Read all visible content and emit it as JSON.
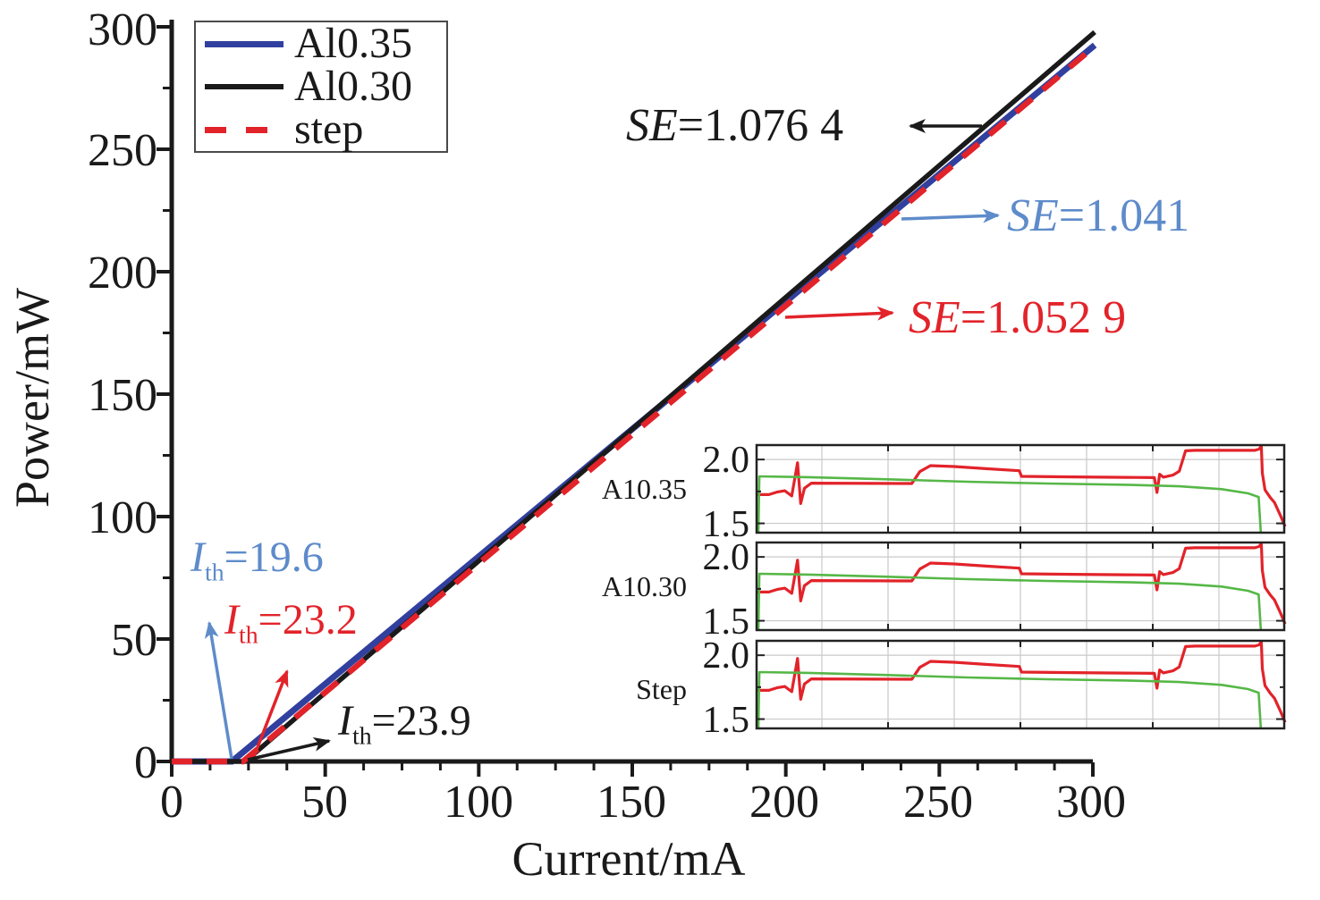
{
  "figure": {
    "xlabel": "Current/mA",
    "ylabel": "Power/mW"
  },
  "legend": {
    "items": [
      {
        "label": "Al0.35",
        "color": "#31409e",
        "style": "solid"
      },
      {
        "label": "Al0.30",
        "color": "#1a1a1a",
        "style": "solid"
      },
      {
        "label": "step",
        "color": "#e2232a",
        "style": "dashed"
      }
    ]
  },
  "annotations": {
    "se": [
      {
        "sym": "SE",
        "val": "=1.076 4",
        "color": "#1a1a1a",
        "target": "Al0.30"
      },
      {
        "sym": "SE",
        "val": "=1.041",
        "color": "#5e8bca",
        "target": "Al0.35"
      },
      {
        "sym": "SE",
        "val": "=1.052 9",
        "color": "#e2232a",
        "target": "step"
      }
    ],
    "ith": [
      {
        "sym": "I",
        "sub": "th",
        "val": "=19.6",
        "color": "#5e8bca",
        "target": "Al0.35"
      },
      {
        "sym": "I",
        "sub": "th",
        "val": "=23.2",
        "color": "#e2232a",
        "target": "step"
      },
      {
        "sym": "I",
        "sub": "th",
        "val": "=23.9",
        "color": "#1a1a1a",
        "target": "Al0.30"
      }
    ]
  },
  "chart_data": {
    "type": "line",
    "title": "",
    "xlabel": "Current/mA",
    "ylabel": "Power/mW",
    "xlim": [
      0,
      300
    ],
    "ylim": [
      0,
      300
    ],
    "grid": false,
    "legend_position": "upper-left",
    "x_ticks": [
      0,
      50,
      100,
      150,
      200,
      250,
      300
    ],
    "y_ticks": [
      0,
      50,
      100,
      150,
      200,
      250,
      300
    ],
    "x_minor_step": 12.5,
    "y_minor_step": 25,
    "series": [
      {
        "name": "Al0.35",
        "color": "#31409e",
        "style": "solid",
        "threshold_mA": 19.6,
        "slope_efficiency_W_per_A": 1.041,
        "power_at_300mA_mW": 291.9
      },
      {
        "name": "step",
        "color": "#e2232a",
        "style": "dashed",
        "threshold_mA": 23.2,
        "slope_efficiency_W_per_A": 1.0529,
        "power_at_300mA_mW": 291.4
      },
      {
        "name": "Al0.30",
        "color": "#1a1a1a",
        "style": "solid",
        "threshold_mA": 23.9,
        "slope_efficiency_W_per_A": 1.0764,
        "power_at_300mA_mW": 297.2
      }
    ],
    "insets": {
      "labels": [
        "A10.35",
        "A10.30",
        "Step"
      ],
      "y_tick_labels": [
        "2.0",
        "1.5"
      ],
      "y_ticks": [
        2.0,
        1.5
      ],
      "y_range": [
        1.42,
        2.12
      ],
      "grid": true,
      "series": [
        {
          "name": "red-curve",
          "color": "#e2232a",
          "points": [
            [
              0.0,
              1.725
            ],
            [
              0.025,
              1.725
            ],
            [
              0.04,
              1.745
            ],
            [
              0.055,
              1.755
            ],
            [
              0.068,
              1.715
            ],
            [
              0.079,
              1.975
            ],
            [
              0.085,
              1.655
            ],
            [
              0.092,
              1.775
            ],
            [
              0.105,
              1.815
            ],
            [
              0.295,
              1.812
            ],
            [
              0.31,
              1.905
            ],
            [
              0.33,
              1.952
            ],
            [
              0.375,
              1.945
            ],
            [
              0.435,
              1.928
            ],
            [
              0.498,
              1.912
            ],
            [
              0.502,
              1.868
            ],
            [
              0.6,
              1.864
            ],
            [
              0.7,
              1.86
            ],
            [
              0.753,
              1.858
            ],
            [
              0.758,
              1.742
            ],
            [
              0.763,
              1.885
            ],
            [
              0.77,
              1.862
            ],
            [
              0.788,
              1.878
            ],
            [
              0.8,
              1.908
            ],
            [
              0.812,
              2.068
            ],
            [
              0.83,
              2.072
            ],
            [
              0.943,
              2.072
            ],
            [
              0.951,
              2.082
            ],
            [
              0.955,
              2.135
            ],
            [
              0.957,
              1.895
            ],
            [
              0.962,
              1.762
            ],
            [
              0.972,
              1.702
            ],
            [
              0.98,
              1.662
            ],
            [
              0.99,
              1.572
            ],
            [
              1.0,
              1.475
            ]
          ]
        },
        {
          "name": "green-curve",
          "color": "#56b747",
          "points": [
            [
              0.005,
              1.43
            ],
            [
              0.007,
              1.868
            ],
            [
              0.1,
              1.862
            ],
            [
              0.25,
              1.845
            ],
            [
              0.4,
              1.826
            ],
            [
              0.55,
              1.812
            ],
            [
              0.7,
              1.802
            ],
            [
              0.8,
              1.79
            ],
            [
              0.88,
              1.768
            ],
            [
              0.93,
              1.735
            ],
            [
              0.95,
              1.706
            ],
            [
              0.954,
              1.43
            ]
          ]
        }
      ]
    }
  }
}
